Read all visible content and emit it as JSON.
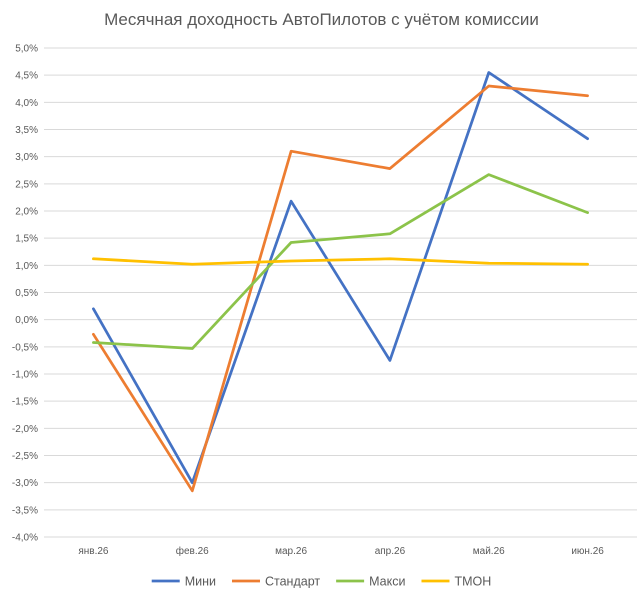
{
  "chart_data": {
    "type": "line",
    "title": "Месячная доходность АвтоПилотов с учётом комиссии",
    "xlabel": "",
    "ylabel": "",
    "categories": [
      "янв.26",
      "фев.26",
      "мар.26",
      "апр.26",
      "май.26",
      "июн.26"
    ],
    "ylim": [
      -4.0,
      5.0
    ],
    "ytick_step": 0.5,
    "ytick_labels": [
      "5,0%",
      "4,5%",
      "4,0%",
      "3,5%",
      "3,0%",
      "2,5%",
      "2,0%",
      "1,5%",
      "1,0%",
      "0,5%",
      "0,0%",
      "-0,5%",
      "-1,0%",
      "-1,5%",
      "-2,0%",
      "-2,5%",
      "-3,0%",
      "-3,5%",
      "-4,0%"
    ],
    "grid": true,
    "legend_position": "bottom",
    "series": [
      {
        "name": "Мини",
        "color": "#4472C4",
        "values": [
          0.2,
          -3.0,
          2.18,
          -0.75,
          4.55,
          3.33
        ]
      },
      {
        "name": "Стандарт",
        "color": "#ED7D31",
        "values": [
          -0.27,
          -3.15,
          3.1,
          2.78,
          4.3,
          4.12
        ]
      },
      {
        "name": "Макси",
        "color": "#8CC34A",
        "values": [
          -0.42,
          -0.53,
          1.42,
          1.58,
          2.67,
          1.97
        ]
      },
      {
        "name": "ТМОН",
        "color": "#FFC000",
        "values": [
          1.12,
          1.02,
          1.08,
          1.12,
          1.04,
          1.02
        ]
      }
    ]
  }
}
